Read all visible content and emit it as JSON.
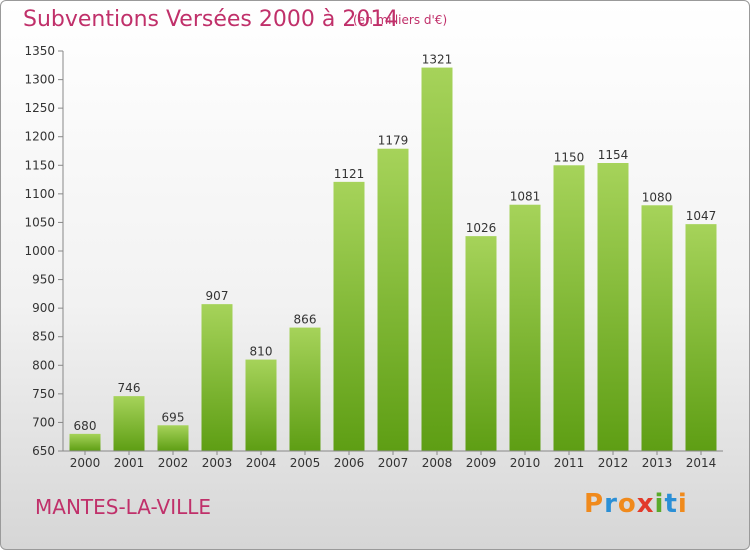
{
  "header": {
    "title": "Subventions Versées 2000 à 2014",
    "unit": "(en milliers d'€)"
  },
  "footer": {
    "city": "MANTES-LA-VILLE",
    "logo": "Proxiti"
  },
  "colors": {
    "title": "#c0306a",
    "bar_light": "#a6d35a",
    "bar_dark": "#5e9e14",
    "logo_letters": [
      "#f08a1c",
      "#2a8fd6",
      "#f08a1c",
      "#e23a2a",
      "#5aaa2a",
      "#2a8fd6",
      "#f08a1c"
    ]
  },
  "chart_data": {
    "type": "bar",
    "title": "Subventions Versées 2000 à 2014",
    "subtitle": "(en milliers d'€)",
    "xlabel": "",
    "ylabel": "",
    "categories": [
      "2000",
      "2001",
      "2002",
      "2003",
      "2004",
      "2005",
      "2006",
      "2007",
      "2008",
      "2009",
      "2010",
      "2011",
      "2012",
      "2013",
      "2014"
    ],
    "values": [
      680,
      746,
      695,
      907,
      810,
      866,
      1121,
      1179,
      1321,
      1026,
      1081,
      1150,
      1154,
      1080,
      1047
    ],
    "ylim": [
      650,
      1350
    ],
    "yticks": [
      650,
      700,
      750,
      800,
      850,
      900,
      950,
      1000,
      1050,
      1100,
      1150,
      1200,
      1250,
      1300,
      1350
    ],
    "grid": false,
    "legend": "none"
  }
}
